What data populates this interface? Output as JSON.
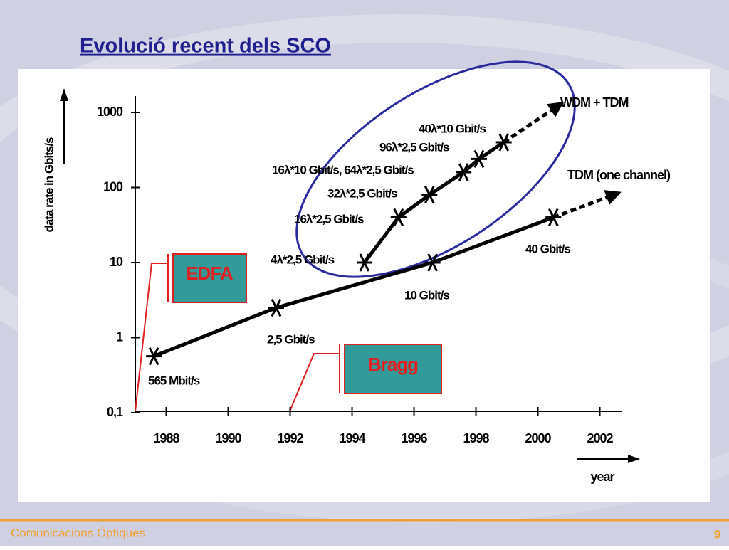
{
  "slide": {
    "title": "Evolució recent dels SCO",
    "footer": "Comunicacions Òptiques",
    "page_number": "9"
  },
  "chart_data": {
    "type": "line",
    "log_y": true,
    "grid": false,
    "y_label": "data rate in Gbits/s",
    "x_label": "year",
    "xlim": [
      1987,
      2002.7
    ],
    "ylim": [
      0.1,
      1000
    ],
    "xticks": [
      1988,
      1990,
      1992,
      1994,
      1996,
      1998,
      2000,
      2002
    ],
    "yticks": [
      {
        "value": 0.1,
        "label": "0,1"
      },
      1,
      10,
      100,
      1000
    ],
    "series": [
      {
        "name": "TDM (one channel)",
        "color": "#000000",
        "x": [
          1987.6,
          1991.55,
          1996.6,
          2000.5
        ],
        "values": [
          0.565,
          2.5,
          10,
          40
        ],
        "value_labels": [
          "565 Mbit/s",
          "2,5 Gbit/s",
          "10 Gbit/s",
          "40 Gbit/s"
        ]
      },
      {
        "name": "WDM + TDM",
        "color": "#000000",
        "x": [
          1994.4,
          1995.5,
          1996.5,
          1997.6,
          1998.1,
          1998.9
        ],
        "values": [
          10,
          40,
          80,
          160,
          240,
          400
        ],
        "value_labels": [
          "4λ*2,5 Gbit/s",
          "16λ*2,5 Gbit/s",
          "32λ*2,5 Gbit/s",
          "16λ*10 Gbit/s, 64λ*2,5 Gbit/s",
          "96λ*2,5 Gbit/s",
          "40λ*10 Gbit/s"
        ]
      }
    ],
    "annotations": [
      "EDFA",
      "Bragg"
    ]
  }
}
